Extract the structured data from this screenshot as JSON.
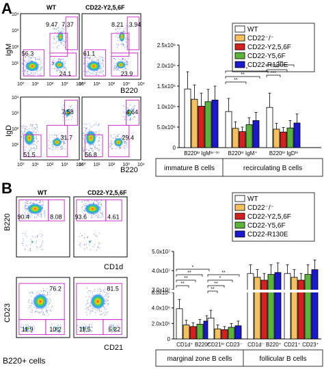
{
  "figure": {
    "panel_a_label": "A",
    "panel_b_label": "B",
    "footer_label": "B220+ cells"
  },
  "flow": {
    "panel_a": {
      "col_labels": [
        "WT",
        "CD22-Y2,5,6F"
      ],
      "row1": {
        "ylabel": "IgM",
        "xlabel": "B220",
        "wt": [
          "9.47",
          "7.37",
          "56.3",
          "24.1"
        ],
        "mut": [
          "8.21",
          "3.94",
          "61.1",
          "23.9"
        ]
      },
      "row2": {
        "ylabel": "IgD",
        "xlabel": "B220",
        "wt": [
          "7.58",
          "31.7",
          "51.5"
        ],
        "mut": [
          "4.64",
          "29.4",
          "56.8"
        ]
      },
      "axis_ticks": [
        "10⁰",
        "10¹",
        "10²",
        "10³",
        "10⁴"
      ]
    },
    "panel_b": {
      "col_labels": [
        "WT",
        "CD22-Y2,5,6F"
      ],
      "row1": {
        "ylabel": "B220",
        "xlabel": "CD1d",
        "wt": [
          "90.4",
          "8.08"
        ],
        "mut": [
          "93.6",
          "4.61"
        ]
      },
      "row2": {
        "ylabel": "CD23",
        "xlabel": "CD21",
        "wt": [
          "76.2",
          "11.9",
          "10.2"
        ],
        "mut": [
          "81.5",
          "11.5",
          "5.22"
        ]
      }
    }
  },
  "chart_data": [
    {
      "type": "bar",
      "panel": "A",
      "categories": [
        "B220ˡᵒ IgMˡᵒ⁻ʰⁱ",
        "B220ʰⁱ IgM⁺",
        "B220ʰⁱ IgDʰⁱ"
      ],
      "groups": [
        "immature B cells",
        "recirculating B cells"
      ],
      "ylim": [
        0,
        2500000
      ],
      "yticks": [
        "0",
        "5.0x10⁵",
        "1.0x10⁶",
        "1.5x10⁶",
        "2.0x10⁶",
        "2.5x10⁶"
      ],
      "series": [
        {
          "name": "WT",
          "color": "#ffffff",
          "values": [
            1430000,
            880000,
            980000
          ],
          "errors": [
            420000,
            320000,
            350000
          ]
        },
        {
          "name": "CD22⁻/⁻",
          "color": "#f5c060",
          "values": [
            1180000,
            470000,
            450000
          ],
          "errors": [
            350000,
            160000,
            140000
          ]
        },
        {
          "name": "CD22-Y2,5,6F",
          "color": "#d42020",
          "values": [
            1010000,
            390000,
            380000
          ],
          "errors": [
            320000,
            110000,
            110000
          ]
        },
        {
          "name": "CD22-Y5,6F",
          "color": "#5ab43c",
          "values": [
            1120000,
            560000,
            480000
          ],
          "errors": [
            300000,
            170000,
            180000
          ]
        },
        {
          "name": "CD22-R130E",
          "color": "#1a1acc",
          "values": [
            1160000,
            660000,
            600000
          ],
          "errors": [
            340000,
            200000,
            220000
          ]
        }
      ]
    },
    {
      "type": "bar",
      "panel": "B",
      "categories": [
        "CD1d⁺ B220⁺",
        "CD21ʰⁱ CD23⁻",
        "CD1d⁻ B220⁺",
        "CD21⁺ CD23⁺"
      ],
      "groups": [
        "marginal zone B cells",
        "follicular B cells"
      ],
      "ylim": [
        0,
        50000000
      ],
      "axis_break": [
        6000000,
        30000000
      ],
      "yticks": [
        "0",
        "2.0x10⁶",
        "4.0x10⁶",
        "6.0x10⁶",
        "3.0x10⁷",
        "4.0x10⁷",
        "5.0x10⁷"
      ],
      "series": [
        {
          "name": "WT",
          "color": "#ffffff",
          "values": [
            3900000,
            2700000,
            38500000,
            38500000
          ],
          "errors": [
            1200000,
            1000000,
            4500000,
            4500000
          ]
        },
        {
          "name": "CD22⁻/⁻",
          "color": "#f5c060",
          "values": [
            1800000,
            1300000,
            36500000,
            36500000
          ],
          "errors": [
            600000,
            500000,
            4000000,
            4000000
          ]
        },
        {
          "name": "CD22-Y2,5,6F",
          "color": "#d42020",
          "values": [
            1600000,
            1200000,
            35000000,
            35000000
          ],
          "errors": [
            500000,
            400000,
            3500000,
            3500000
          ]
        },
        {
          "name": "CD22-Y5,6F",
          "color": "#5ab43c",
          "values": [
            1900000,
            1500000,
            38000000,
            38000000
          ],
          "errors": [
            600000,
            500000,
            5000000,
            5000000
          ]
        },
        {
          "name": "CD22-R130E",
          "color": "#1a1acc",
          "values": [
            2300000,
            1700000,
            39000000,
            40500000
          ],
          "errors": [
            700000,
            600000,
            5000000,
            5000000
          ]
        }
      ],
      "significance": [
        "**",
        "**",
        "**",
        "*",
        "**",
        "**",
        "*",
        "**"
      ]
    }
  ]
}
